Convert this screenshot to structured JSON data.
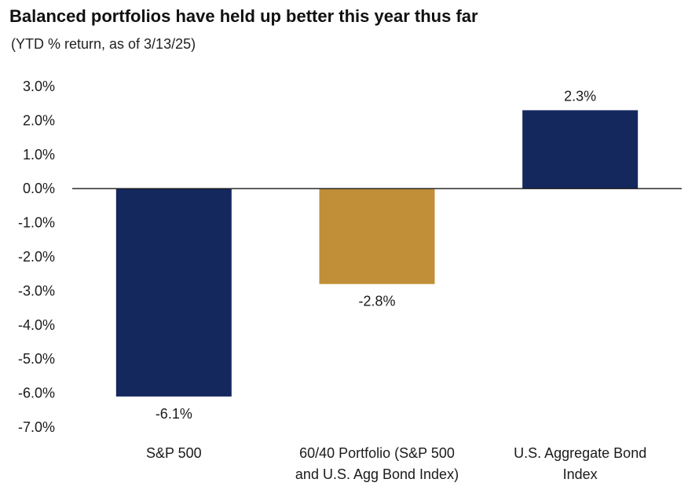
{
  "chart_data": {
    "type": "bar",
    "title": "Balanced portfolios have held up better this year thus far",
    "subtitle": "(YTD % return, as of 3/13/25)",
    "categories": [
      [
        "S&P 500"
      ],
      [
        "60/40 Portfolio (S&P 500",
        "and U.S. Agg Bond Index)"
      ],
      [
        "U.S. Aggregate Bond",
        "Index"
      ]
    ],
    "values": [
      -6.1,
      -2.8,
      2.3
    ],
    "value_labels": [
      "-6.1%",
      "-2.8%",
      "2.3%"
    ],
    "bar_colors": [
      "#14285e",
      "#c08f37",
      "#14285e"
    ],
    "ylim": [
      -7,
      3
    ],
    "yticks": [
      3,
      2,
      1,
      0,
      -1,
      -2,
      -3,
      -4,
      -5,
      -6,
      -7
    ],
    "ytick_labels": [
      "3.0%",
      "2.0%",
      "1.0%",
      "0.0%",
      "-1.0%",
      "-2.0%",
      "-3.0%",
      "-4.0%",
      "-5.0%",
      "-6.0%",
      "-7.0%"
    ],
    "xlabel": "",
    "ylabel": "",
    "grid": false,
    "legend": "none"
  }
}
